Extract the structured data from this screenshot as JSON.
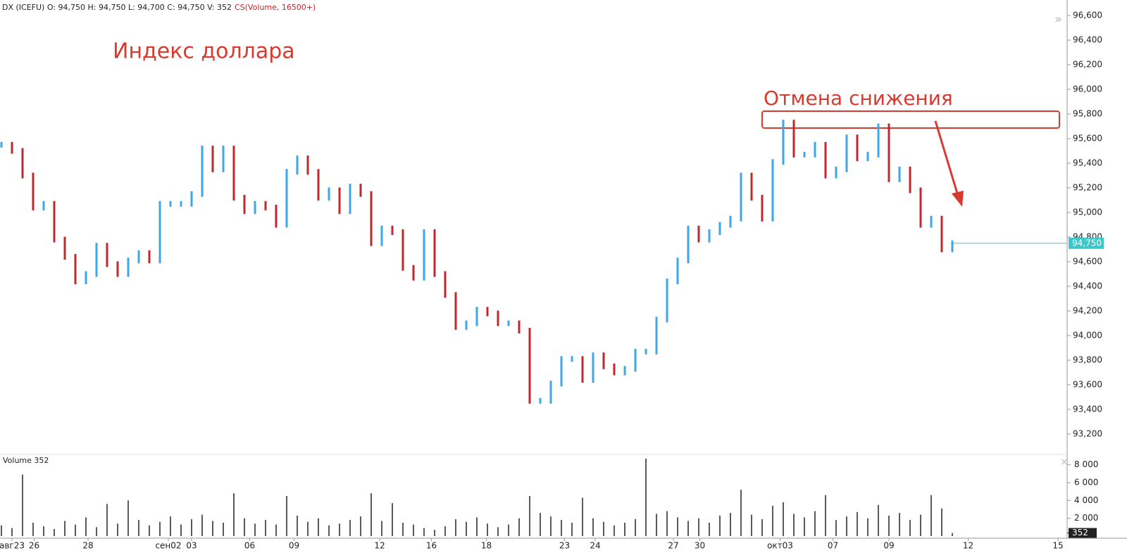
{
  "chart_data": [
    {
      "type": "price-bars",
      "header": "DX (ICEFU) O: 94,750 H: 94,750 L: 94,700 C: 94,750 V: 352",
      "study": "CS(Volume, 16500+)",
      "title": "Индекс доллара",
      "annotation": "Отмена снижения",
      "up_color": "#3ea6ea",
      "down_color": "#c1272d",
      "x": [
        0,
        1,
        2,
        3,
        4,
        5,
        6,
        7,
        8,
        9,
        10,
        11,
        12,
        13,
        14,
        15,
        16,
        17,
        18,
        19,
        20,
        21,
        22,
        23,
        24,
        25,
        26,
        27,
        28,
        29,
        30,
        31,
        32,
        33,
        34,
        35,
        36,
        37,
        38,
        39,
        40,
        41,
        42,
        43,
        44,
        45,
        46,
        47,
        48,
        49,
        50,
        51,
        52,
        53,
        54,
        55,
        56,
        57,
        58,
        59,
        60,
        61,
        62,
        63,
        64,
        65,
        66,
        67,
        68,
        69,
        70,
        71,
        72,
        73,
        74,
        75,
        76,
        77,
        78,
        79,
        80,
        81,
        82,
        83,
        84,
        85,
        86,
        87,
        88,
        89,
        90
      ],
      "values": [
        95550,
        95500,
        95300,
        95040,
        95070,
        94780,
        94640,
        94440,
        94500,
        94730,
        94580,
        94500,
        94610,
        94670,
        94610,
        95070,
        95070,
        95070,
        95150,
        95520,
        95350,
        95520,
        95120,
        95010,
        95070,
        95040,
        94900,
        95330,
        95440,
        95330,
        95120,
        95180,
        95010,
        95210,
        95150,
        94750,
        94870,
        94840,
        94550,
        94470,
        94840,
        94500,
        94330,
        94070,
        94100,
        94210,
        94180,
        94100,
        94100,
        94040,
        93470,
        93470,
        93610,
        93810,
        93810,
        93640,
        93840,
        93750,
        93700,
        93730,
        93870,
        93870,
        94130,
        94440,
        94610,
        94870,
        94780,
        94840,
        94900,
        94950,
        95300,
        95120,
        94950,
        95410,
        95730,
        95470,
        95470,
        95550,
        95300,
        95350,
        95610,
        95440,
        95470,
        95700,
        95270,
        95350,
        95180,
        94900,
        94950,
        94700,
        94750
      ],
      "last_price": {
        "value": 94750,
        "label": "94,750"
      },
      "xlim": [
        0,
        101
      ],
      "xticks": [
        {
          "value": 1,
          "label": "авг23"
        },
        {
          "value": 3.1,
          "label": "26"
        },
        {
          "value": 8.2,
          "label": "28"
        },
        {
          "value": 15.8,
          "label": "сен02"
        },
        {
          "value": 18,
          "label": "03"
        },
        {
          "value": 23.5,
          "label": "06"
        },
        {
          "value": 27.7,
          "label": "09"
        },
        {
          "value": 35.8,
          "label": "12"
        },
        {
          "value": 40.7,
          "label": "16"
        },
        {
          "value": 45.9,
          "label": "18"
        },
        {
          "value": 53.3,
          "label": "23"
        },
        {
          "value": 56.2,
          "label": "24"
        },
        {
          "value": 63.6,
          "label": "27"
        },
        {
          "value": 66.1,
          "label": "30"
        },
        {
          "value": 73.7,
          "label": "окт03"
        },
        {
          "value": 78.7,
          "label": "07"
        },
        {
          "value": 84,
          "label": "09"
        },
        {
          "value": 91.5,
          "label": "12"
        },
        {
          "value": 100,
          "label": "15"
        }
      ],
      "ylim": [
        93040,
        96726
      ],
      "yticks": [
        {
          "value": 93200,
          "label": "93,200"
        },
        {
          "value": 93400,
          "label": "93,400"
        },
        {
          "value": 93600,
          "label": "93,600"
        },
        {
          "value": 93800,
          "label": "93,800"
        },
        {
          "value": 94000,
          "label": "94,000"
        },
        {
          "value": 94200,
          "label": "94,200"
        },
        {
          "value": 94400,
          "label": "94,400"
        },
        {
          "value": 94600,
          "label": "94,600"
        },
        {
          "value": 94800,
          "label": "94,800"
        },
        {
          "value": 95000,
          "label": "95,000"
        },
        {
          "value": 95200,
          "label": "95,200"
        },
        {
          "value": 95400,
          "label": "95,400"
        },
        {
          "value": 95600,
          "label": "95,600"
        },
        {
          "value": 95800,
          "label": "95,800"
        },
        {
          "value": 96000,
          "label": "96,000"
        },
        {
          "value": 96200,
          "label": "96,200"
        },
        {
          "value": 96400,
          "label": "96,400"
        },
        {
          "value": 96600,
          "label": "96,600"
        }
      ]
    },
    {
      "type": "volume",
      "title": "Volume 352",
      "color": "#222222",
      "values": [
        1200,
        900,
        6900,
        1500,
        1100,
        800,
        1700,
        1300,
        2100,
        1000,
        3600,
        1400,
        4000,
        1800,
        1200,
        1600,
        2200,
        1300,
        1900,
        2400,
        1700,
        1500,
        4800,
        2000,
        1400,
        1800,
        1300,
        4500,
        2300,
        1600,
        2000,
        1200,
        1400,
        1800,
        2200,
        4800,
        1700,
        3700,
        1500,
        1300,
        900,
        700,
        1100,
        1900,
        1600,
        2100,
        1400,
        1000,
        1300,
        2000,
        4500,
        2600,
        2200,
        1800,
        1500,
        4300,
        2000,
        1600,
        1200,
        1500,
        1900,
        8700,
        2500,
        2800,
        2100,
        1700,
        2000,
        1500,
        2300,
        2600,
        5200,
        2400,
        1900,
        3400,
        3800,
        2500,
        2100,
        2800,
        4600,
        1800,
        2200,
        2700,
        2000,
        3500,
        2300,
        2600,
        1800,
        2400,
        4600,
        3100,
        352
      ],
      "last_value": {
        "value": 352,
        "label": "352"
      },
      "ylim": [
        0,
        9000
      ],
      "yticks": [
        {
          "value": 2000,
          "label": "2 000"
        },
        {
          "value": 4000,
          "label": "4 000"
        },
        {
          "value": 6000,
          "label": "6 000"
        },
        {
          "value": 8000,
          "label": "8 000"
        }
      ]
    }
  ]
}
